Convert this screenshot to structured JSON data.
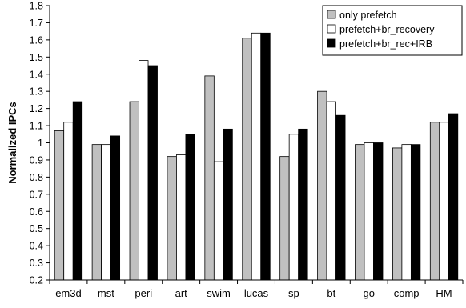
{
  "chart_data": {
    "type": "bar",
    "ylabel": "Normalized IPCs",
    "xlabel": "",
    "ylim": [
      0.2,
      1.8
    ],
    "ytick_step": 0.1,
    "yticks": [
      "0.2",
      "0.3",
      "0.4",
      "0.5",
      "0.6",
      "0.7",
      "0.8",
      "0.9",
      "1",
      "1.1",
      "1.2",
      "1.3",
      "1.4",
      "1.5",
      "1.6",
      "1.7",
      "1.8"
    ],
    "grid": false,
    "legend_position": "top-right",
    "categories": [
      "em3d",
      "mst",
      "peri",
      "art",
      "swim",
      "lucas",
      "sp",
      "bt",
      "go",
      "comp",
      "HM"
    ],
    "series": [
      {
        "name": "only prefetch",
        "color": "#c0c0c0",
        "values": [
          1.07,
          0.99,
          1.24,
          0.92,
          1.39,
          1.61,
          0.92,
          1.3,
          0.99,
          0.97,
          1.12
        ]
      },
      {
        "name": "prefetch+br_recovery",
        "color": "#ffffff",
        "values": [
          1.12,
          0.99,
          1.48,
          0.93,
          0.89,
          1.64,
          1.05,
          1.24,
          1.0,
          0.99,
          1.12
        ]
      },
      {
        "name": "prefetch+br_rec+IRB",
        "color": "#000000",
        "values": [
          1.24,
          1.04,
          1.45,
          1.05,
          1.08,
          1.64,
          1.08,
          1.16,
          1.0,
          0.99,
          1.17
        ]
      }
    ]
  }
}
